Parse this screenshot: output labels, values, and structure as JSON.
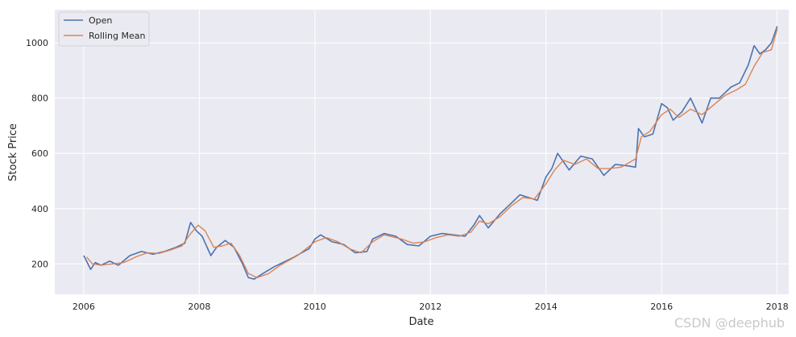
{
  "chart_data": {
    "type": "line",
    "title": "",
    "xlabel": "Date",
    "ylabel": "Stock Price",
    "xlim": [
      2005.5,
      2018.2
    ],
    "ylim": [
      90,
      1120
    ],
    "xticks": [
      2006,
      2008,
      2010,
      2012,
      2014,
      2016,
      2018
    ],
    "yticks": [
      200,
      400,
      600,
      800,
      1000
    ],
    "grid": true,
    "legend_position": "top-left",
    "series": [
      {
        "name": "Open",
        "color": "#4c72b0",
        "x": [
          2006.0,
          2006.05,
          2006.12,
          2006.2,
          2006.3,
          2006.45,
          2006.6,
          2006.8,
          2007.0,
          2007.2,
          2007.4,
          2007.6,
          2007.75,
          2007.85,
          2007.95,
          2008.05,
          2008.2,
          2008.3,
          2008.45,
          2008.6,
          2008.75,
          2008.85,
          2008.95,
          2009.1,
          2009.3,
          2009.6,
          2009.9,
          2010.0,
          2010.1,
          2010.3,
          2010.5,
          2010.7,
          2010.9,
          2011.0,
          2011.2,
          2011.4,
          2011.6,
          2011.8,
          2012.0,
          2012.2,
          2012.4,
          2012.6,
          2012.75,
          2012.85,
          2013.0,
          2013.2,
          2013.4,
          2013.55,
          2013.7,
          2013.85,
          2014.0,
          2014.1,
          2014.2,
          2014.4,
          2014.6,
          2014.8,
          2015.0,
          2015.2,
          2015.4,
          2015.55,
          2015.6,
          2015.7,
          2015.85,
          2016.0,
          2016.1,
          2016.2,
          2016.35,
          2016.5,
          2016.7,
          2016.85,
          2017.0,
          2017.1,
          2017.2,
          2017.35,
          2017.5,
          2017.6,
          2017.7,
          2017.8,
          2017.9,
          2018.0
        ],
        "values": [
          230,
          210,
          180,
          205,
          195,
          210,
          195,
          230,
          245,
          235,
          245,
          260,
          275,
          350,
          320,
          300,
          230,
          260,
          285,
          260,
          200,
          150,
          145,
          165,
          190,
          220,
          255,
          290,
          305,
          280,
          270,
          240,
          245,
          290,
          310,
          300,
          270,
          265,
          300,
          310,
          305,
          300,
          340,
          375,
          330,
          380,
          420,
          450,
          440,
          430,
          515,
          545,
          600,
          540,
          590,
          580,
          520,
          560,
          555,
          550,
          690,
          660,
          670,
          780,
          765,
          720,
          750,
          800,
          710,
          800,
          800,
          820,
          840,
          855,
          920,
          990,
          960,
          975,
          1000,
          1060
        ]
      },
      {
        "name": "Rolling Mean",
        "color": "#dd8452",
        "x": [
          2006.05,
          2006.15,
          2006.3,
          2006.5,
          2006.7,
          2006.9,
          2007.1,
          2007.3,
          2007.5,
          2007.7,
          2007.85,
          2007.98,
          2008.1,
          2008.25,
          2008.4,
          2008.55,
          2008.7,
          2008.85,
          2009.0,
          2009.2,
          2009.4,
          2009.7,
          2010.0,
          2010.2,
          2010.4,
          2010.6,
          2010.8,
          2011.0,
          2011.2,
          2011.5,
          2011.7,
          2011.9,
          2012.1,
          2012.3,
          2012.5,
          2012.7,
          2012.85,
          2013.0,
          2013.2,
          2013.4,
          2013.6,
          2013.8,
          2014.0,
          2014.15,
          2014.3,
          2014.5,
          2014.7,
          2014.9,
          2015.1,
          2015.3,
          2015.55,
          2015.65,
          2015.8,
          2016.0,
          2016.15,
          2016.3,
          2016.5,
          2016.7,
          2016.9,
          2017.1,
          2017.3,
          2017.45,
          2017.6,
          2017.75,
          2017.9,
          2018.0
        ],
        "values": [
          225,
          200,
          195,
          200,
          205,
          225,
          240,
          238,
          250,
          265,
          310,
          340,
          320,
          260,
          265,
          275,
          230,
          165,
          150,
          165,
          195,
          230,
          280,
          295,
          280,
          255,
          240,
          280,
          305,
          290,
          275,
          280,
          295,
          305,
          300,
          315,
          355,
          345,
          370,
          410,
          440,
          435,
          490,
          540,
          575,
          560,
          580,
          545,
          545,
          550,
          580,
          660,
          680,
          740,
          760,
          730,
          760,
          740,
          775,
          810,
          830,
          850,
          915,
          965,
          975,
          1050
        ]
      }
    ]
  },
  "watermark": "CSDN @deephub"
}
